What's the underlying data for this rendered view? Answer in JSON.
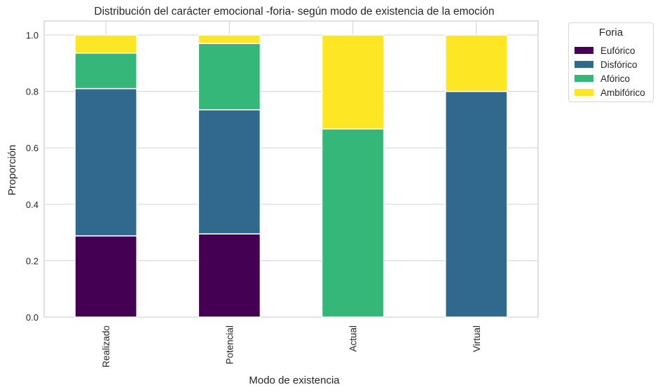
{
  "chart_data": {
    "type": "bar",
    "stacked": true,
    "title": "Distribución del carácter emocional -foria- según modo de existencia de la emoción",
    "xlabel": "Modo de existencia",
    "ylabel": "Proporción",
    "ylim": [
      0,
      1.0
    ],
    "yticks": [
      "0.0",
      "0.2",
      "0.4",
      "0.6",
      "0.8",
      "1.0"
    ],
    "grid": true,
    "categories": [
      "Realizado",
      "Potencial",
      "Actual",
      "Virtual"
    ],
    "series": [
      {
        "name": "Eufórico",
        "color": "#440154",
        "values": [
          0.288,
          0.295,
          0.0,
          0.0
        ]
      },
      {
        "name": "Disfórico",
        "color": "#31688e",
        "values": [
          0.522,
          0.44,
          0.0,
          0.8
        ]
      },
      {
        "name": "Afórico",
        "color": "#35b779",
        "values": [
          0.126,
          0.235,
          0.667,
          0.0
        ]
      },
      {
        "name": "Ambifórico",
        "color": "#fde725",
        "values": [
          0.064,
          0.03,
          0.333,
          0.2
        ]
      }
    ],
    "legend": {
      "title": "Foria",
      "placement": "outside-top-right"
    }
  }
}
